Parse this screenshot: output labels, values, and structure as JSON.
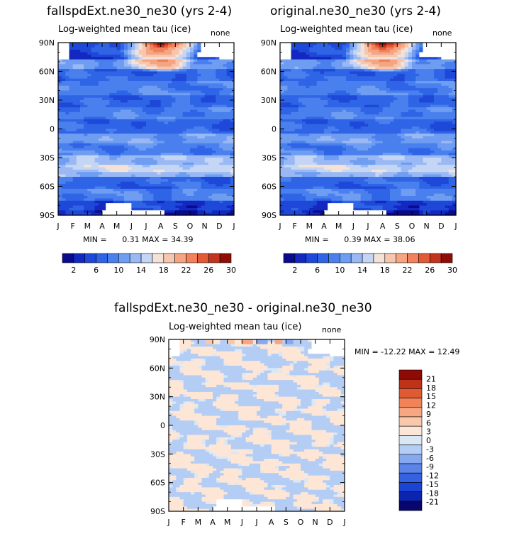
{
  "panels": [
    {
      "title": "fallspdExt.ne30_ne30 (yrs 2-4)",
      "subtitle": "Log-weighted mean tau (ice)",
      "corner_label": "none",
      "stats": {
        "min_label": "MIN =",
        "min": "0.31",
        "max_label": "MAX =",
        "max": "34.39"
      }
    },
    {
      "title": "original.ne30_ne30 (yrs 2-4)",
      "subtitle": "Log-weighted mean tau (ice)",
      "corner_label": "none",
      "stats": {
        "min_label": "MIN =",
        "min": "0.39",
        "max_label": "MAX =",
        "max": "38.06"
      }
    },
    {
      "title": "fallspdExt.ne30_ne30 - original.ne30_ne30",
      "subtitle": "Log-weighted mean tau (ice)",
      "corner_label": "none",
      "stats_text": "MIN = -12.22 MAX =  12.49"
    }
  ],
  "chart_data": [
    {
      "type": "heatmap",
      "title": "fallspdExt.ne30_ne30 (yrs 2-4)",
      "subtitle": "Log-weighted mean tau (ice)",
      "x_ticks": [
        "J",
        "F",
        "M",
        "A",
        "M",
        "J",
        "J",
        "A",
        "S",
        "O",
        "N",
        "D",
        "J"
      ],
      "y_ticks": [
        "90N",
        "60N",
        "30N",
        "0",
        "30S",
        "60S",
        "90S"
      ],
      "ylim": [
        -90,
        90
      ],
      "min": 0.31,
      "max": 34.39,
      "colorbar_levels": [
        "2",
        "6",
        "10",
        "14",
        "18",
        "22",
        "26",
        "30"
      ],
      "latitude_band_means": [
        {
          "lat": 85,
          "value": 6
        },
        {
          "lat": 70,
          "value": 8
        },
        {
          "lat": 60,
          "value": 7
        },
        {
          "lat": 40,
          "value": 7
        },
        {
          "lat": 20,
          "value": 6
        },
        {
          "lat": 0,
          "value": 5
        },
        {
          "lat": -20,
          "value": 8
        },
        {
          "lat": -40,
          "value": 12
        },
        {
          "lat": -60,
          "value": 7
        },
        {
          "lat": -80,
          "value": 4
        }
      ],
      "peak": {
        "month": "Jul-Aug",
        "lat": 88,
        "value": 34.39
      }
    },
    {
      "type": "heatmap",
      "title": "original.ne30_ne30 (yrs 2-4)",
      "subtitle": "Log-weighted mean tau (ice)",
      "x_ticks": [
        "J",
        "F",
        "M",
        "A",
        "M",
        "J",
        "J",
        "A",
        "S",
        "O",
        "N",
        "D",
        "J"
      ],
      "y_ticks": [
        "90N",
        "60N",
        "30N",
        "0",
        "30S",
        "60S",
        "90S"
      ],
      "ylim": [
        -90,
        90
      ],
      "min": 0.39,
      "max": 38.06,
      "colorbar_levels": [
        "2",
        "6",
        "10",
        "14",
        "18",
        "22",
        "26",
        "30"
      ],
      "latitude_band_means": [
        {
          "lat": 85,
          "value": 6
        },
        {
          "lat": 70,
          "value": 8
        },
        {
          "lat": 60,
          "value": 7
        },
        {
          "lat": 40,
          "value": 7
        },
        {
          "lat": 20,
          "value": 6
        },
        {
          "lat": 0,
          "value": 5
        },
        {
          "lat": -20,
          "value": 8
        },
        {
          "lat": -40,
          "value": 12
        },
        {
          "lat": -60,
          "value": 7
        },
        {
          "lat": -80,
          "value": 4
        }
      ],
      "peak": {
        "month": "Jul-Aug",
        "lat": 88,
        "value": 38.06
      }
    },
    {
      "type": "heatmap",
      "title": "fallspdExt.ne30_ne30 - original.ne30_ne30",
      "subtitle": "Log-weighted mean tau (ice)",
      "x_ticks": [
        "J",
        "F",
        "M",
        "A",
        "M",
        "J",
        "J",
        "A",
        "S",
        "O",
        "N",
        "D",
        "J"
      ],
      "y_ticks": [
        "90N",
        "60N",
        "30N",
        "0",
        "30S",
        "60S",
        "90S"
      ],
      "ylim": [
        -90,
        90
      ],
      "min": -12.22,
      "max": 12.49,
      "colorbar_levels": [
        "21",
        "18",
        "15",
        "12",
        "9",
        "6",
        "3",
        "0",
        "-3",
        "-6",
        "-9",
        "-12",
        "-15",
        "-18",
        "-21"
      ]
    }
  ],
  "colors": {
    "seq": [
      "#0a0a8c",
      "#1228c0",
      "#1e48d8",
      "#2f64e6",
      "#4a80ee",
      "#6e9df2",
      "#9ab9f4",
      "#c4d6f4",
      "#f4e2d8",
      "#f7c6ae",
      "#f5a582",
      "#f2815c",
      "#e25a36",
      "#c2341e",
      "#8e0e06"
    ],
    "div": [
      "#06066e",
      "#0c24b0",
      "#1a44d4",
      "#3462e0",
      "#5a84ea",
      "#86a8f0",
      "#b4cdf4",
      "#dae8f6",
      "#fde6d6",
      "#f8c8ac",
      "#f6a680",
      "#f28258",
      "#e05a34",
      "#c03218",
      "#8e0a04"
    ],
    "missing": "#ffffff"
  }
}
